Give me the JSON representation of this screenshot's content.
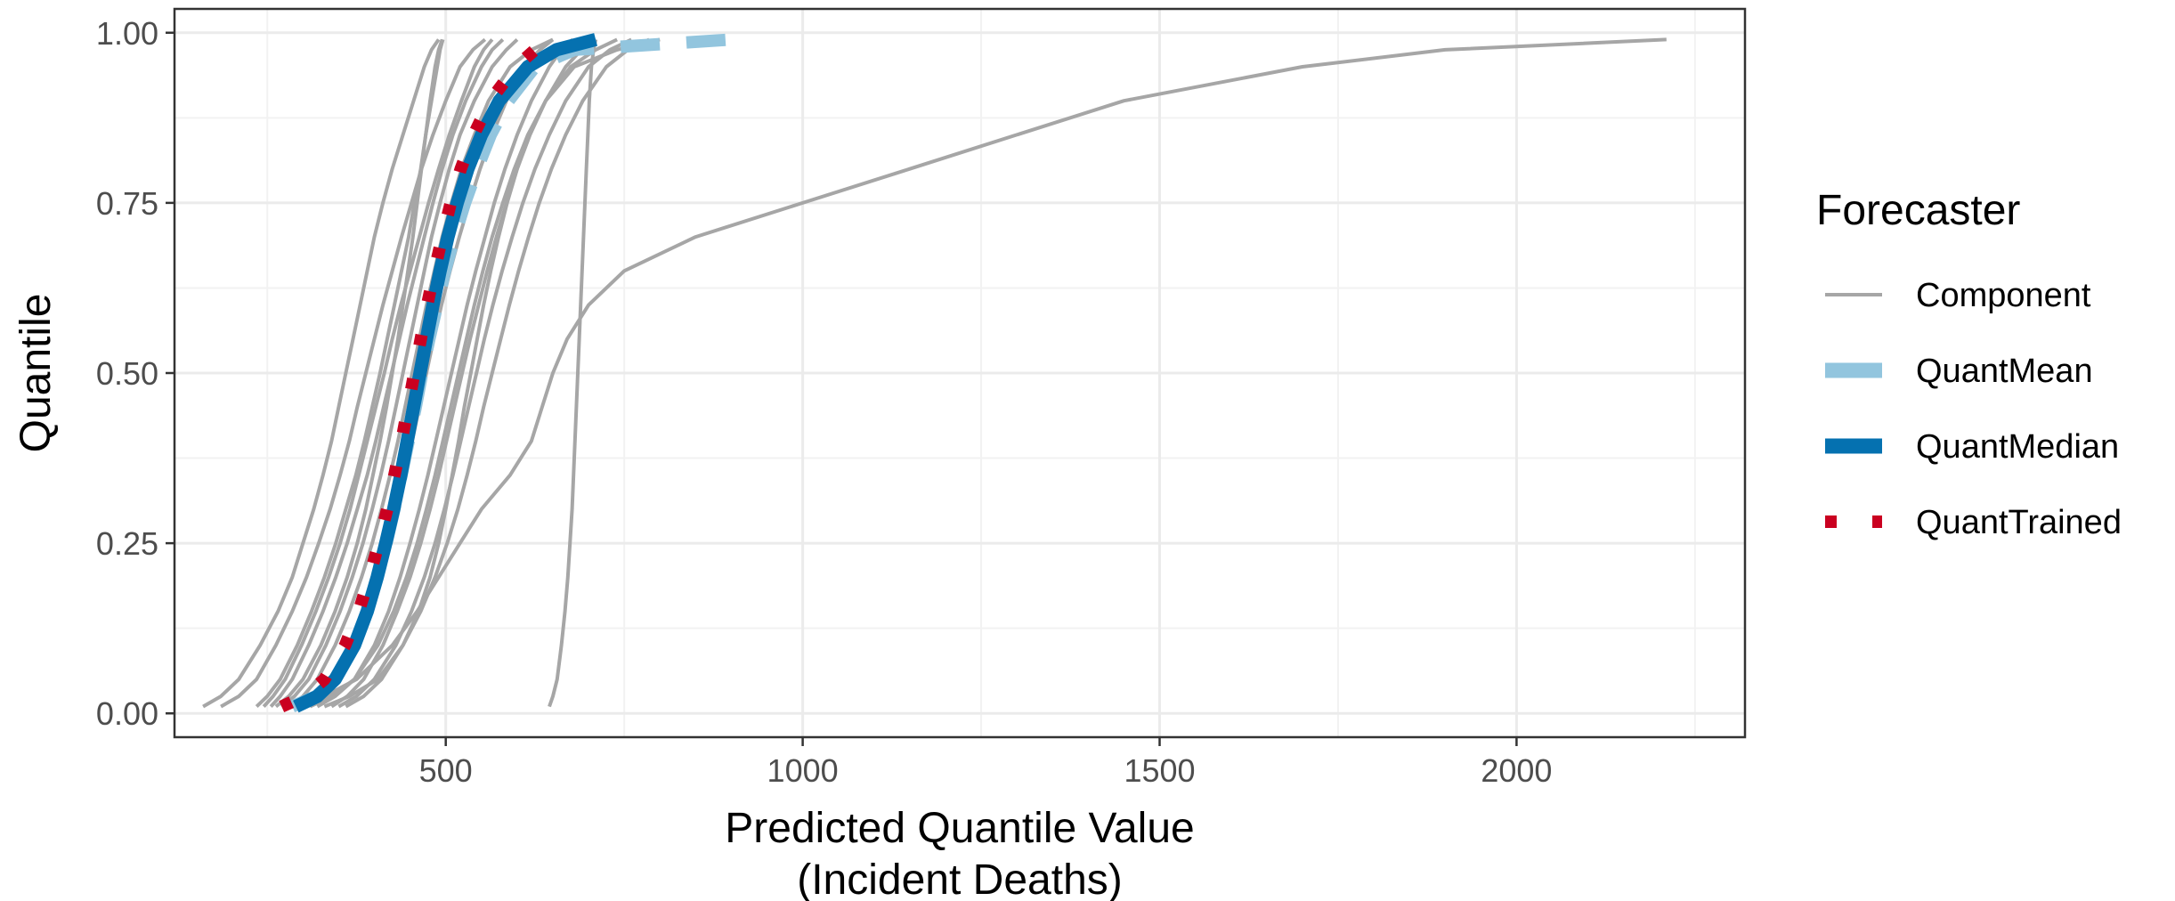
{
  "chart_data": {
    "type": "line",
    "xlabel_line1": "Predicted Quantile Value",
    "xlabel_line2": "(Incident Deaths)",
    "ylabel": "Quantile",
    "xlim": [
      120,
      2320
    ],
    "ylim": [
      -0.035,
      1.035
    ],
    "x_ticks": [
      500,
      1000,
      1500,
      2000
    ],
    "x_tick_labels": [
      "500",
      "1000",
      "1500",
      "2000"
    ],
    "y_ticks": [
      0,
      0.25,
      0.5,
      0.75,
      1
    ],
    "y_tick_labels": [
      "0.00",
      "0.25",
      "0.50",
      "0.75",
      "1.00"
    ],
    "grid": true,
    "legend": {
      "title": "Forecaster",
      "position": "right",
      "entries": [
        "Component",
        "QuantMean",
        "QuantMedian",
        "QuantTrained"
      ]
    },
    "colors": {
      "Component": "#a6a6a6",
      "QuantMean": "#92c5de",
      "QuantMedian": "#0571b0",
      "QuantTrained": "#ca0020"
    },
    "quantile_levels": [
      0.01,
      0.025,
      0.05,
      0.1,
      0.15,
      0.2,
      0.25,
      0.3,
      0.35,
      0.4,
      0.45,
      0.5,
      0.55,
      0.6,
      0.65,
      0.7,
      0.75,
      0.8,
      0.85,
      0.9,
      0.95,
      0.975,
      0.99
    ],
    "series": [
      {
        "name": "Component",
        "x": [
          160,
          185,
          210,
          240,
          265,
          285,
          300,
          315,
          328,
          340,
          350,
          360,
          370,
          380,
          390,
          400,
          412,
          425,
          440,
          455,
          470,
          480,
          490
        ]
      },
      {
        "name": "Component",
        "x": [
          185,
          210,
          235,
          262,
          285,
          305,
          322,
          338,
          352,
          365,
          376,
          388,
          400,
          412,
          425,
          438,
          452,
          466,
          482,
          500,
          520,
          538,
          555
        ]
      },
      {
        "name": "Component",
        "x": [
          235,
          250,
          268,
          292,
          312,
          330,
          346,
          360,
          374,
          386,
          397,
          408,
          418,
          428,
          438,
          448,
          456,
          465,
          472,
          480,
          488,
          492,
          496
        ]
      },
      {
        "name": "Component",
        "x": [
          245,
          258,
          275,
          298,
          318,
          336,
          352,
          366,
          378,
          390,
          402,
          414,
          425,
          437,
          450,
          463,
          476,
          490,
          505,
          522,
          540,
          553,
          565
        ]
      },
      {
        "name": "Component",
        "x": [
          255,
          268,
          285,
          308,
          328,
          346,
          362,
          376,
          390,
          402,
          413,
          424,
          435,
          446,
          458,
          470,
          482,
          495,
          510,
          528,
          550,
          565,
          580
        ]
      },
      {
        "name": "Component",
        "x": [
          262,
          280,
          300,
          325,
          345,
          362,
          376,
          388,
          398,
          408,
          417,
          425,
          433,
          440,
          447,
          454,
          460,
          466,
          472,
          478,
          485,
          490,
          495
        ]
      },
      {
        "name": "Component",
        "x": [
          270,
          288,
          308,
          332,
          352,
          369,
          384,
          397,
          409,
          420,
          430,
          440,
          450,
          460,
          470,
          480,
          492,
          505,
          520,
          540,
          565,
          585,
          600
        ]
      },
      {
        "name": "Component",
        "x": [
          280,
          300,
          320,
          345,
          365,
          382,
          397,
          410,
          422,
          433,
          443,
          453,
          463,
          473,
          484,
          495,
          508,
          522,
          540,
          560,
          590,
          620,
          650
        ]
      },
      {
        "name": "Component",
        "x": [
          300,
          320,
          340,
          365,
          385,
          402,
          417,
          430,
          442,
          453,
          463,
          473,
          483,
          494,
          506,
          519,
          533,
          548,
          565,
          585,
          610,
          632,
          650
        ]
      },
      {
        "name": "Component",
        "x": [
          320,
          345,
          372,
          400,
          420,
          436,
          450,
          463,
          475,
          486,
          497,
          508,
          519,
          530,
          542,
          555,
          568,
          583,
          600,
          620,
          645,
          662,
          678
        ]
      },
      {
        "name": "Component",
        "x": [
          340,
          362,
          385,
          412,
          432,
          450,
          465,
          478,
          490,
          501,
          512,
          523,
          534,
          546,
          558,
          571,
          585,
          600,
          618,
          640,
          668,
          690,
          710
        ]
      },
      {
        "name": "Component",
        "x": [
          310,
          340,
          372,
          405,
          427,
          445,
          460,
          473,
          485,
          496,
          507,
          518,
          529,
          540,
          552,
          565,
          580,
          596,
          615,
          640,
          675,
          710,
          740
        ]
      },
      {
        "name": "Component",
        "x": [
          350,
          375,
          400,
          430,
          452,
          470,
          485,
          498,
          510,
          521,
          532,
          543,
          554,
          566,
          579,
          593,
          608,
          625,
          645,
          668,
          700,
          730,
          760
        ]
      },
      {
        "name": "Component",
        "x": [
          360,
          385,
          410,
          440,
          465,
          485,
          502,
          517,
          530,
          542,
          553,
          565,
          577,
          589,
          602,
          616,
          631,
          648,
          668,
          692,
          725,
          755,
          785
        ]
      },
      {
        "name": "Component",
        "x": [
          330,
          365,
          405,
          440,
          462,
          478,
          490,
          500,
          509,
          518,
          526,
          535,
          544,
          553,
          563,
          574,
          586,
          600,
          617,
          640,
          680,
          740,
          800
        ]
      },
      {
        "name": "Component",
        "x": [
          645,
          650,
          656,
          662,
          667,
          671,
          674,
          677,
          679,
          681,
          683,
          685,
          687,
          689,
          691,
          693,
          695,
          697,
          699,
          701,
          704,
          707,
          710
        ]
      },
      {
        "name": "Component",
        "x": [
          290,
          330,
          375,
          425,
          460,
          490,
          520,
          550,
          590,
          620,
          635,
          650,
          670,
          700,
          750,
          850,
          1000,
          1150,
          1300,
          1450,
          1700,
          1900,
          2210
        ]
      },
      {
        "name": "QuantMean",
        "x": [
          285,
          318,
          345,
          372,
          390,
          404,
          417,
          428,
          438,
          448,
          458,
          467,
          477,
          488,
          499,
          512,
          527,
          544,
          563,
          588,
          625,
          680,
          900
        ]
      },
      {
        "name": "QuantMedian",
        "x": [
          290,
          320,
          345,
          372,
          390,
          404,
          416,
          427,
          437,
          446,
          455,
          464,
          473,
          482,
          492,
          503,
          516,
          531,
          550,
          575,
          615,
          655,
          710
        ]
      },
      {
        "name": "QuantTrained",
        "x": [
          270,
          302,
          330,
          359,
          378,
          393,
          406,
          418,
          428,
          438,
          447,
          456,
          465,
          474,
          484,
          495,
          507,
          521,
          539,
          562,
          598,
          625,
          648
        ]
      }
    ]
  }
}
